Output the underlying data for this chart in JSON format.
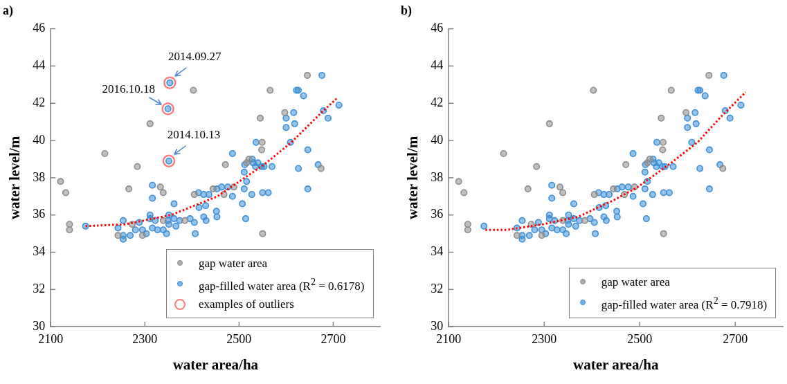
{
  "chart_data": [
    {
      "type": "scatter",
      "title": "a)",
      "xlabel": "water area/ha",
      "ylabel": "water level/m",
      "xlim": [
        2100,
        2800
      ],
      "xticks": [
        2100,
        2300,
        2500,
        2700
      ],
      "ylim": [
        30,
        46
      ],
      "yticks": [
        30,
        32,
        34,
        36,
        38,
        40,
        42,
        44,
        46
      ],
      "grid": false,
      "legend": "bottom right",
      "marker": "circle",
      "series": [
        {
          "name": "gap water area",
          "color": "#8c8c8c",
          "type": "scatter",
          "x": [
            2121,
            2132,
            2140,
            2140,
            2215,
            2266,
            2284,
            2311,
            2243,
            2273,
            2295,
            2403,
            2333,
            2339,
            2339,
            2385,
            2405,
            2445,
            2471,
            2468,
            2489,
            2645,
            2566,
            2597,
            2545,
            2549,
            2548,
            2521,
            2674,
            2550,
            2516
          ],
          "values": [
            37.8,
            37.2,
            35.5,
            35.2,
            39.3,
            37.4,
            38.6,
            40.9,
            34.9,
            35.5,
            34.9,
            42.7,
            37.5,
            37.2,
            35.7,
            35.7,
            37.1,
            37.4,
            38.7,
            37.1,
            37.5,
            43.5,
            42.7,
            41.5,
            41.2,
            39.9,
            39.5,
            39.0,
            38.5,
            35.0,
            38.8
          ]
        },
        {
          "name": "gap-filled water area (R$^{2}$ = 0.6178)",
          "color": "#3d8fd6",
          "type": "scatter",
          "x": [
            2174,
            2243,
            2254,
            2254,
            2254,
            2269,
            2280,
            2288,
            2295,
            2303,
            2311,
            2311,
            2316,
            2322,
            2316,
            2316,
            2327,
            2339,
            2346,
            2349,
            2351,
            2351,
            2353,
            2349,
            2351,
            2362,
            2362,
            2366,
            2374,
            2396,
            2407,
            2405,
            2414,
            2415,
            2425,
            2425,
            2429,
            2430,
            2436,
            2452,
            2453,
            2453,
            2463,
            2476,
            2486,
            2486,
            2507,
            2514,
            2511,
            2512,
            2516,
            2511,
            2527,
            2528,
            2530,
            2535,
            2540,
            2548,
            2553,
            2550,
            2562,
            2570,
            2536,
            2626,
            2646,
            2646,
            2668,
            2609,
            2600,
            2600,
            2618,
            2616,
            2622,
            2626,
            2637,
            2676,
            2679,
            2689,
            2712
          ],
          "values": [
            35.4,
            35.3,
            35.7,
            34.9,
            34.7,
            34.9,
            35.2,
            35.6,
            35.2,
            35.0,
            36.0,
            35.8,
            35.3,
            35.7,
            37.6,
            36.9,
            35.2,
            35.2,
            35.0,
            35.7,
            36.0,
            35.5,
            43.1,
            41.7,
            38.9,
            36.6,
            35.8,
            35.4,
            35.7,
            35.8,
            35.0,
            35.6,
            37.2,
            36.4,
            37.1,
            35.9,
            36.5,
            35.7,
            37.1,
            36.2,
            35.9,
            37.4,
            37.5,
            37.5,
            39.3,
            37.0,
            36.6,
            35.8,
            38.3,
            38.7,
            37.8,
            37.4,
            37.1,
            39.0,
            38.8,
            38.6,
            38.8,
            38.6,
            38.6,
            37.2,
            37.2,
            38.6,
            39.9,
            38.5,
            39.5,
            37.4,
            38.7,
            39.9,
            41.2,
            40.7,
            40.9,
            41.5,
            42.7,
            42.7,
            42.4,
            43.5,
            41.6,
            41.2,
            41.9
          ]
        },
        {
          "name": "examples of outliers",
          "color": "#ff7c80",
          "type": "scatter",
          "x": [
            2353,
            2349,
            2351
          ],
          "values": [
            43.1,
            41.7,
            38.9
          ]
        },
        {
          "color": "#ff0000",
          "type": "line",
          "marker": "none",
          "line_style": "dotted",
          "x": [
            2174,
            2258,
            2356,
            2454,
            2553,
            2611,
            2675,
            2709
          ],
          "values": [
            35.4,
            35.5,
            36.0,
            37.0,
            38.7,
            39.9,
            41.5,
            42.3
          ]
        }
      ],
      "annotations": [
        {
          "text": "2014.09.27",
          "x": 2353,
          "y": 43.1
        },
        {
          "text": "2016.10.18",
          "x": 2349,
          "y": 41.7
        },
        {
          "text": "2014.10.13",
          "x": 2351,
          "y": 38.9
        }
      ]
    },
    {
      "type": "scatter",
      "title": "b)",
      "xlabel": "water area/ha",
      "ylabel": "water level/m",
      "xlim": [
        2100,
        2800
      ],
      "xticks": [
        2100,
        2300,
        2500,
        2700
      ],
      "ylim": [
        30,
        46
      ],
      "yticks": [
        30,
        32,
        34,
        36,
        38,
        40,
        42,
        44,
        46
      ],
      "grid": false,
      "legend": "bottom right",
      "marker": "circle",
      "series": [
        {
          "name": "gap water area",
          "color": "#8c8c8c",
          "type": "scatter",
          "x": [
            2121,
            2132,
            2140,
            2140,
            2215,
            2266,
            2284,
            2311,
            2243,
            2273,
            2295,
            2403,
            2333,
            2339,
            2339,
            2385,
            2405,
            2445,
            2471,
            2468,
            2489,
            2645,
            2566,
            2597,
            2545,
            2549,
            2548,
            2521,
            2674,
            2550,
            2516
          ],
          "values": [
            37.8,
            37.2,
            35.5,
            35.2,
            39.3,
            37.4,
            38.6,
            40.9,
            34.9,
            35.5,
            34.9,
            42.7,
            37.5,
            37.2,
            35.7,
            35.7,
            37.1,
            37.4,
            38.7,
            37.1,
            37.5,
            43.5,
            42.7,
            41.5,
            41.2,
            39.9,
            39.5,
            39.0,
            38.5,
            35.0,
            38.8
          ]
        },
        {
          "name": "gap-filled water area (R$^{2}$ = 0.7918)",
          "color": "#3d8fd6",
          "type": "scatter",
          "x": [
            2174,
            2243,
            2254,
            2254,
            2254,
            2269,
            2280,
            2288,
            2295,
            2303,
            2311,
            2311,
            2316,
            2322,
            2316,
            2316,
            2327,
            2339,
            2346,
            2349,
            2351,
            2351,
            2362,
            2362,
            2366,
            2374,
            2396,
            2407,
            2405,
            2414,
            2415,
            2425,
            2425,
            2429,
            2430,
            2436,
            2452,
            2453,
            2453,
            2463,
            2476,
            2486,
            2486,
            2507,
            2514,
            2511,
            2512,
            2516,
            2511,
            2527,
            2528,
            2530,
            2535,
            2540,
            2548,
            2553,
            2550,
            2562,
            2570,
            2536,
            2626,
            2646,
            2646,
            2668,
            2609,
            2600,
            2600,
            2618,
            2616,
            2622,
            2626,
            2637,
            2676,
            2679,
            2689,
            2712
          ],
          "values": [
            35.4,
            35.3,
            35.7,
            34.9,
            34.7,
            34.9,
            35.2,
            35.6,
            35.2,
            35.0,
            36.0,
            35.8,
            35.3,
            35.7,
            37.6,
            36.9,
            35.2,
            35.2,
            35.0,
            35.7,
            36.0,
            35.5,
            36.6,
            35.8,
            35.4,
            35.7,
            35.8,
            35.0,
            35.6,
            37.2,
            36.4,
            37.1,
            35.9,
            36.5,
            35.7,
            37.1,
            36.2,
            35.9,
            37.4,
            37.5,
            37.5,
            39.3,
            37.0,
            36.6,
            35.8,
            38.3,
            38.7,
            37.8,
            37.4,
            37.1,
            39.0,
            38.8,
            38.6,
            38.8,
            38.6,
            38.6,
            37.2,
            37.2,
            38.6,
            39.9,
            38.5,
            39.5,
            37.4,
            38.7,
            39.9,
            41.2,
            40.7,
            40.9,
            41.5,
            42.7,
            42.7,
            42.4,
            43.5,
            41.6,
            41.2,
            41.9
          ]
        },
        {
          "color": "#ff0000",
          "type": "line",
          "marker": "none",
          "line_style": "dotted",
          "x": [
            2177,
            2222,
            2297,
            2371,
            2446,
            2496,
            2566,
            2621,
            2671,
            2722
          ],
          "values": [
            35.2,
            35.2,
            35.5,
            35.9,
            36.8,
            37.5,
            38.8,
            39.9,
            41.3,
            42.6
          ]
        }
      ]
    }
  ]
}
